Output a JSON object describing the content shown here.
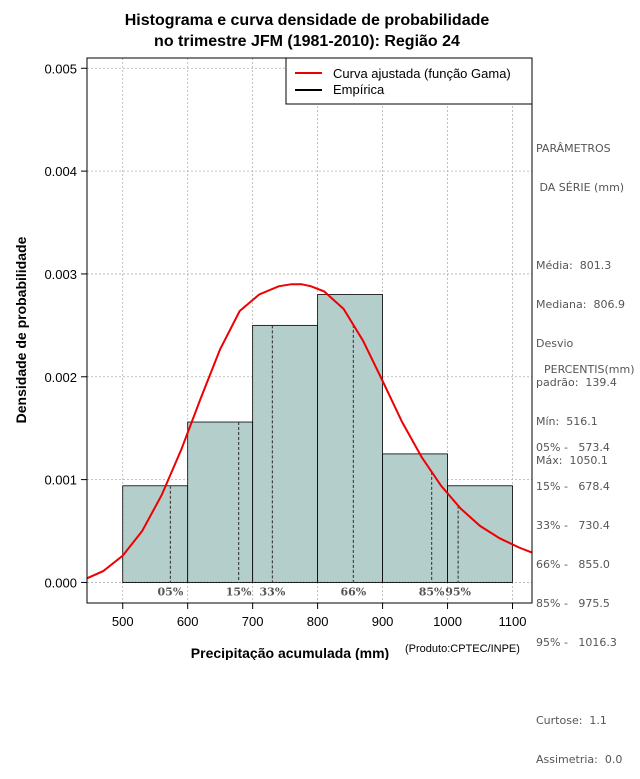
{
  "chart_data": {
    "type": "bar",
    "title_lines": [
      "Histograma e curva densidade de probabilidade",
      "no trimestre JFM (1981-2010): Região 24"
    ],
    "xlabel": "Precipitação acumulada (mm)",
    "ylabel": "Densidade de probabilidade",
    "credit": "(Produto:CPTEC/INPE)",
    "xlim": [
      445,
      1130
    ],
    "ylim": [
      -0.0002,
      0.0051
    ],
    "xticks": [
      500,
      600,
      700,
      800,
      900,
      1000,
      1100
    ],
    "xtick_labels": [
      "500",
      "600",
      "700",
      "800",
      "900",
      "1000",
      "1100"
    ],
    "yticks": [
      0,
      0.001,
      0.002,
      0.003,
      0.004,
      0.005
    ],
    "ytick_labels": [
      "0.000",
      "0.001",
      "0.002",
      "0.003",
      "0.004",
      "0.005"
    ],
    "grid": true,
    "bins": [
      {
        "x0": 500,
        "x1": 600,
        "density": 0.00094
      },
      {
        "x0": 600,
        "x1": 700,
        "density": 0.00156
      },
      {
        "x0": 700,
        "x1": 800,
        "density": 0.0025
      },
      {
        "x0": 800,
        "x1": 900,
        "density": 0.0028
      },
      {
        "x0": 900,
        "x1": 1000,
        "density": 0.00125
      },
      {
        "x0": 1000,
        "x1": 1100,
        "density": 0.00094
      }
    ],
    "gamma_curve": {
      "name": "Curva ajustada (função Gama)",
      "color": "#ee0000",
      "x": [
        445,
        470,
        500,
        530,
        560,
        590,
        620,
        650,
        680,
        710,
        740,
        760,
        775,
        790,
        810,
        840,
        870,
        900,
        930,
        960,
        990,
        1020,
        1050,
        1080,
        1110,
        1130
      ],
      "y": [
        4e-05,
        0.00011,
        0.00026,
        0.0005,
        0.00085,
        0.00129,
        0.00179,
        0.00227,
        0.00264,
        0.0028,
        0.00288,
        0.0029,
        0.0029,
        0.00288,
        0.00283,
        0.00266,
        0.00235,
        0.00196,
        0.00156,
        0.00122,
        0.00094,
        0.00072,
        0.00055,
        0.00043,
        0.00034,
        0.00029
      ]
    },
    "empirical": {
      "name": "Empírica",
      "color": "#000000"
    },
    "percentile_lines": [
      {
        "label": "05%",
        "value": 573.4
      },
      {
        "label": "15%",
        "value": 678.4
      },
      {
        "label": "33%",
        "value": 730.4
      },
      {
        "label": "66%",
        "value": 855.0
      },
      {
        "label": "85%",
        "value": 975.5
      },
      {
        "label": "95%",
        "value": 1016.3
      }
    ],
    "bar_color": "#b4cecc",
    "legend_position": "top-right"
  },
  "side_panel": {
    "params_title_1": "PARÂMETROS",
    "params_title_2": " DA SÉRIE (mm)",
    "media": "Média:  801.3",
    "mediana": "Mediana:  806.9",
    "desvio_1": "Desvio",
    "desvio_2": "padrão:  139.4",
    "min": "Mín:  516.1",
    "max": "Máx:  1050.1",
    "percentis_title": "PERCENTIS(mm)",
    "p05": "05% -   573.4",
    "p15": "15% -   678.4",
    "p33": "33% -   730.4",
    "p66": "66% -   855.0",
    "p85": "85% -   975.5",
    "p95": "95% -   1016.3",
    "curtose": "Curtose:  1.1",
    "assimetria": "Assimetria:  0.0"
  }
}
